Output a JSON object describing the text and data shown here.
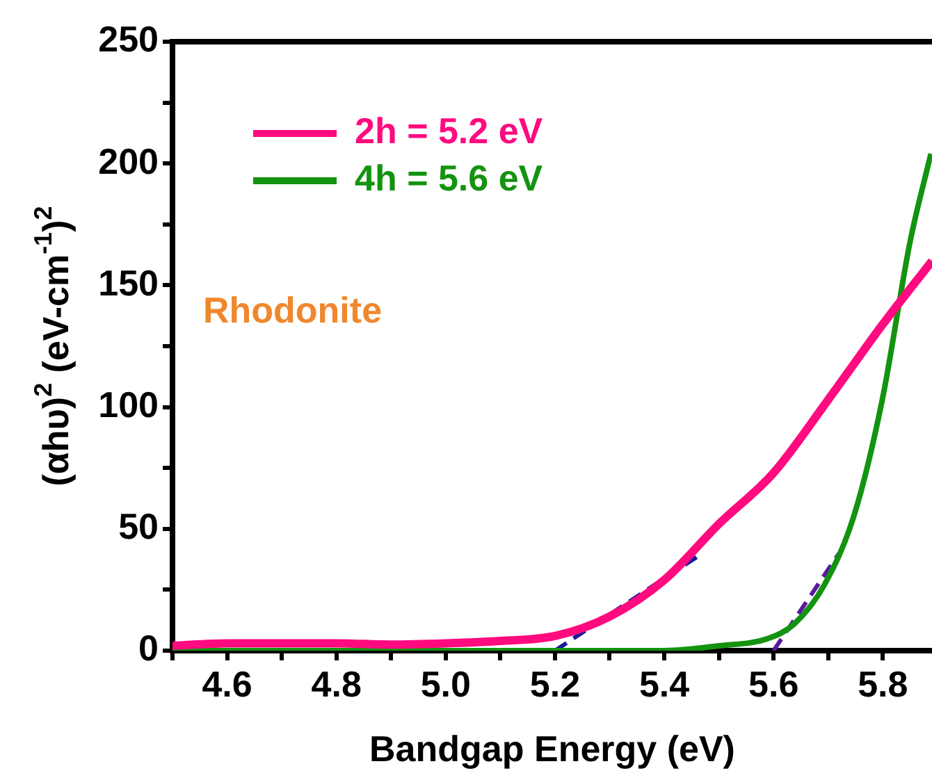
{
  "chart_data": {
    "type": "line",
    "xlabel": "Bandgap Energy (eV)",
    "ylabel": "(αhυ)$^{2}$ (eV-cm$^{-1}$)$^{2}$",
    "annotations": [
      "Rhodonite"
    ],
    "xlim": [
      4.5,
      5.89
    ],
    "ylim": [
      0,
      250
    ],
    "xticks": [
      {
        "value": 4.5,
        "label": null
      },
      4.6,
      {
        "value": 4.7,
        "label": null
      },
      4.8,
      {
        "value": 4.9,
        "label": null
      },
      "5.0",
      {
        "value": 5.1,
        "label": null
      },
      5.2,
      {
        "value": 5.3,
        "label": null
      },
      5.4,
      {
        "value": 5.5,
        "label": null
      },
      5.6,
      {
        "value": 5.7,
        "label": null
      },
      5.8
    ],
    "yticks": [
      0,
      {
        "value": 25,
        "label": null
      },
      50,
      {
        "value": 75,
        "label": null
      },
      100,
      {
        "value": 125,
        "label": null
      },
      150,
      {
        "value": 175,
        "label": null
      },
      200,
      {
        "value": 225,
        "label": null
      },
      250
    ],
    "legend": "top left",
    "grid": false,
    "marker": "none",
    "line_style": "solid",
    "series": [
      {
        "name": "2h = 5.2 eV",
        "color": "#ff0a7f",
        "x": [
          4.5,
          4.6,
          4.7,
          4.8,
          4.9,
          5.0,
          5.1,
          5.2,
          5.3,
          5.4,
          5.5,
          5.6,
          5.7,
          5.8,
          5.89
        ],
        "values": [
          2,
          3,
          3,
          3,
          2.5,
          3,
          4,
          6,
          14,
          29,
          52,
          73,
          103,
          134,
          160
        ]
      },
      {
        "name": "4h = 5.6 eV",
        "color": "#13930f",
        "x": [
          4.5,
          4.8,
          5.0,
          5.2,
          5.4,
          5.5,
          5.59,
          5.638,
          5.693,
          5.748,
          5.799,
          5.85,
          5.888
        ],
        "values": [
          0,
          0,
          0,
          0,
          0,
          2,
          5,
          11,
          27,
          56,
          103,
          168,
          204
        ]
      },
      {
        "color": "#1a1a9e",
        "line_style": "dashed",
        "x": [
          5.2,
          5.47
        ],
        "values": [
          0,
          40
        ]
      },
      {
        "color": "#5a1a9e",
        "line_style": "dashed",
        "x": [
          5.6,
          5.72
        ],
        "values": [
          0,
          40
        ]
      }
    ]
  }
}
